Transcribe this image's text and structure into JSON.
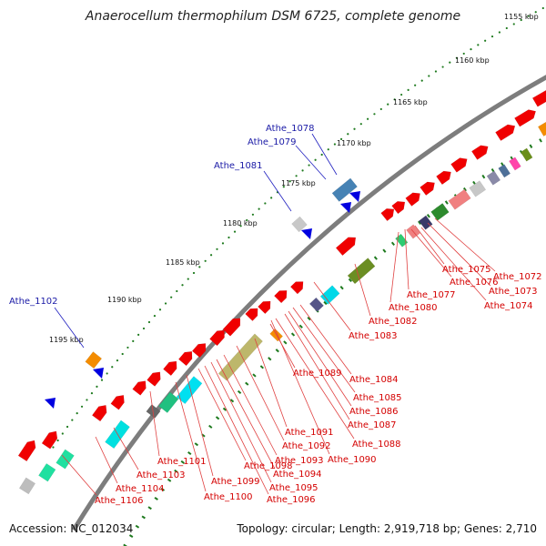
{
  "title": "Anaerocellum thermophilum DSM 6725, complete genome",
  "footer": {
    "accession": "Accession: NC_012034",
    "summary": "Topology: circular; Length: 2,919,718 bp; Genes: 2,710"
  },
  "colors": {
    "backbone": "#7d7d7d",
    "forward_gene": "#f00000",
    "tick_green": "#1e7a1e",
    "label_red": "#d40000",
    "label_blue": "#1a1aa6",
    "leader": "#e04040"
  },
  "ruler": [
    {
      "label": "1155 kbp"
    },
    {
      "label": "1160 kbp"
    },
    {
      "label": "1165 kbp"
    },
    {
      "label": "1170 kbp"
    },
    {
      "label": "1175 kbp"
    },
    {
      "label": "1180 kbp"
    },
    {
      "label": "1185 kbp"
    },
    {
      "label": "1190 kbp"
    },
    {
      "label": "1195 kbp"
    }
  ],
  "outer_features": [
    {
      "label": "Athe_1078"
    },
    {
      "label": "Athe_1079"
    },
    {
      "label": "Athe_1081"
    },
    {
      "label": "Athe_1102"
    }
  ],
  "inner_labels": [
    {
      "label": "Athe_1072"
    },
    {
      "label": "Athe_1073"
    },
    {
      "label": "Athe_1074"
    },
    {
      "label": "Athe_1075"
    },
    {
      "label": "Athe_1076"
    },
    {
      "label": "Athe_1077"
    },
    {
      "label": "Athe_1080"
    },
    {
      "label": "Athe_1082"
    },
    {
      "label": "Athe_1083"
    },
    {
      "label": "Athe_1084"
    },
    {
      "label": "Athe_1085"
    },
    {
      "label": "Athe_1086"
    },
    {
      "label": "Athe_1087"
    },
    {
      "label": "Athe_1088"
    },
    {
      "label": "Athe_1089"
    },
    {
      "label": "Athe_1090"
    },
    {
      "label": "Athe_1091"
    },
    {
      "label": "Athe_1092"
    },
    {
      "label": "Athe_1093"
    },
    {
      "label": "Athe_1094"
    },
    {
      "label": "Athe_1095"
    },
    {
      "label": "Athe_1096"
    },
    {
      "label": "Athe_1098"
    },
    {
      "label": "Athe_1099"
    },
    {
      "label": "Athe_1100"
    },
    {
      "label": "Athe_1101"
    },
    {
      "label": "Athe_1103"
    },
    {
      "label": "Athe_1104"
    },
    {
      "label": "Athe_1106"
    }
  ]
}
